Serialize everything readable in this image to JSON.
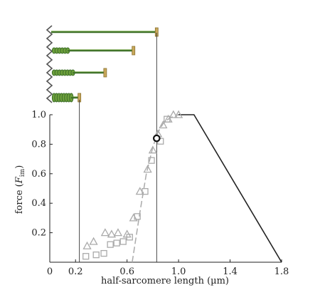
{
  "chart_data": {
    "type": "scatter",
    "xlabel": "half-sarcomere length (µm)",
    "ylabel_main": "force (",
    "ylabel_var": "F",
    "ylabel_sub": "im",
    "ylabel_close": ")",
    "xlim": [
      0,
      1.8
    ],
    "ylim": [
      0,
      1.0
    ],
    "x_ticks": [
      {
        "value": 0,
        "label": "0"
      },
      {
        "value": 0.2,
        "label": "0.2"
      },
      {
        "value": 0.6,
        "label": "0.6"
      },
      {
        "value": 1.0,
        "label": "1.0"
      },
      {
        "value": 1.4,
        "label": "1.4"
      },
      {
        "value": 1.8,
        "label": "1.8"
      }
    ],
    "y_ticks": [
      {
        "value": 0.2,
        "label": "0.2"
      },
      {
        "value": 0.4,
        "label": "0.4"
      },
      {
        "value": 0.6,
        "label": "0.6"
      },
      {
        "value": 0.8,
        "label": "0.8"
      },
      {
        "value": 1.0,
        "label": "1.0"
      }
    ],
    "series": [
      {
        "marker": "triangle",
        "color": "#aaaaaa",
        "x": [
          0.29,
          0.34,
          0.43,
          0.48,
          0.53,
          0.6,
          0.65,
          0.7,
          0.76,
          0.8,
          0.84,
          0.88,
          0.92,
          0.96,
          1.0
        ],
        "y": [
          0.11,
          0.14,
          0.2,
          0.19,
          0.2,
          0.19,
          0.3,
          0.48,
          0.63,
          0.76,
          0.87,
          0.93,
          0.97,
          1.0,
          1.0
        ]
      },
      {
        "marker": "square",
        "color": "#aaaaaa",
        "x": [
          0.28,
          0.36,
          0.42,
          0.47,
          0.52,
          0.57,
          0.62,
          0.68,
          0.74,
          0.79,
          0.86,
          0.91
        ],
        "y": [
          0.04,
          0.05,
          0.06,
          0.12,
          0.13,
          0.14,
          0.17,
          0.31,
          0.48,
          0.69,
          0.82,
          0.97
        ]
      }
    ],
    "curves": [
      {
        "name": "",
        "style": "dashed",
        "color": "#aaaaaa",
        "x": [
          0.64,
          0.7,
          0.75,
          0.8,
          0.84,
          0.88,
          0.92,
          0.96,
          1.0,
          1.04
        ],
        "y": [
          0.0,
          0.34,
          0.6,
          0.78,
          0.88,
          0.94,
          0.97,
          0.99,
          1.0,
          1.0
        ]
      },
      {
        "name": "",
        "style": "solid",
        "color": "#222222",
        "x": [
          1.0,
          1.12,
          1.8
        ],
        "y": [
          1.0,
          1.0,
          0.0
        ]
      }
    ],
    "reference_lines_x": [
      0.23,
      0.83
    ],
    "highlight_point": {
      "x": 0.83,
      "y": 0.84
    },
    "sarcomere_diagrams": [
      {
        "coil_fraction": 0.0,
        "half_sarcomere_length": 0.83
      },
      {
        "coil_fraction": 0.2,
        "half_sarcomere_length": 0.65
      },
      {
        "coil_fraction": 0.4,
        "half_sarcomere_length": 0.43
      },
      {
        "coil_fraction": 0.7,
        "half_sarcomere_length": 0.23
      }
    ],
    "diagram_colors": {
      "filament": "#3c6e28",
      "coil_fill": "#6ea03c",
      "disc": "#c8a85a",
      "backbone": "#555555"
    }
  }
}
